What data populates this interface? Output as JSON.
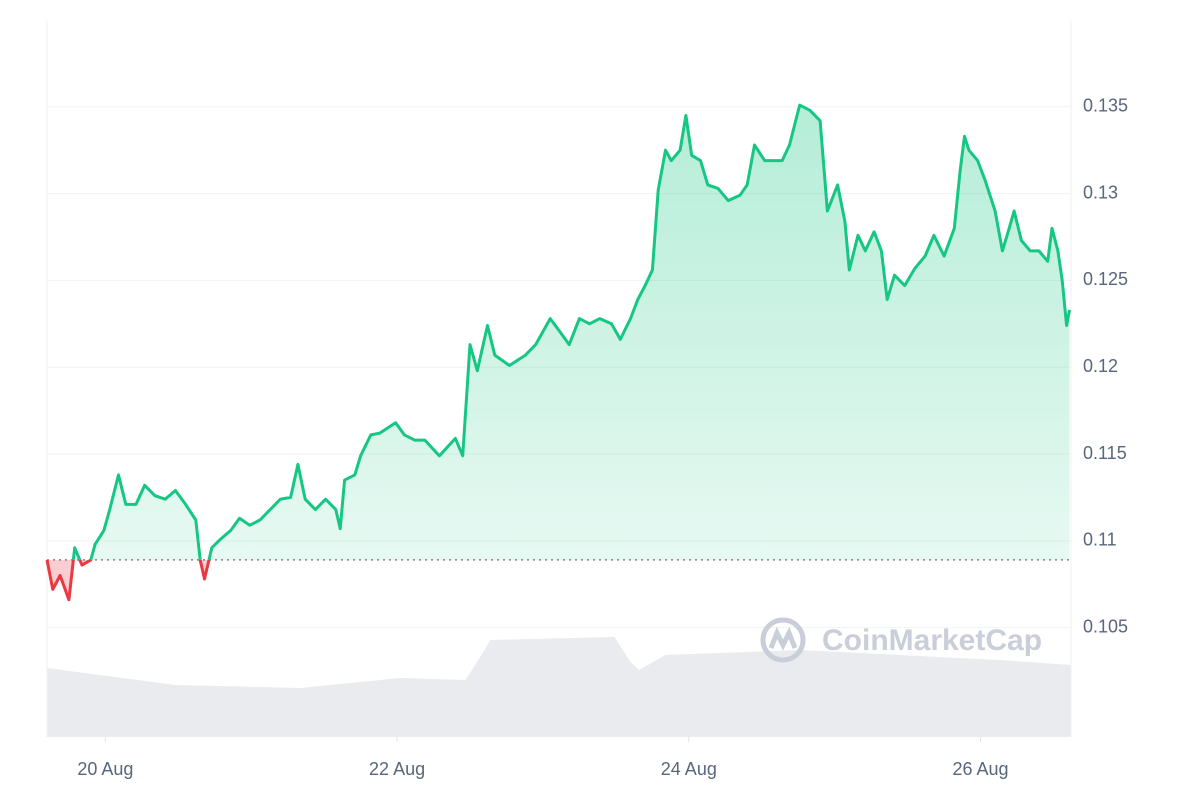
{
  "chart_data": {
    "type": "line",
    "watermark": "CoinMarketCap",
    "xlim": [
      19.6,
      26.62
    ],
    "xticks": [
      {
        "value": 20,
        "label": "20 Aug"
      },
      {
        "value": 22,
        "label": "22 Aug"
      },
      {
        "value": 24,
        "label": "24 Aug"
      },
      {
        "value": 26,
        "label": "26 Aug"
      }
    ],
    "ylim": [
      0.0987,
      0.14
    ],
    "yticks": [
      0.105,
      0.11,
      0.115,
      0.12,
      0.125,
      0.13,
      0.135
    ],
    "grid": true,
    "baseline": 0.1089,
    "up_color": "#16c784",
    "down_color": "#ea3943",
    "series": [
      {
        "color": "#16c784",
        "x": [
          19.6,
          19.64,
          19.69,
          19.75,
          19.79,
          19.84,
          19.9,
          19.93,
          19.99,
          20.03,
          20.09,
          20.14,
          20.21,
          20.27,
          20.34,
          20.41,
          20.48,
          20.55,
          20.62,
          20.65,
          20.68,
          20.73,
          20.79,
          20.86,
          20.92,
          20.99,
          21.06,
          21.13,
          21.2,
          21.27,
          21.32,
          21.37,
          21.44,
          21.51,
          21.58,
          21.61,
          21.64,
          21.71,
          21.75,
          21.82,
          21.88,
          21.99,
          22.05,
          22.12,
          22.19,
          22.29,
          22.4,
          22.45,
          22.5,
          22.55,
          22.62,
          22.67,
          22.77,
          22.88,
          22.95,
          23.05,
          23.12,
          23.18,
          23.25,
          23.32,
          23.39,
          23.47,
          23.53,
          23.6,
          23.65,
          23.7,
          23.75,
          23.79,
          23.84,
          23.88,
          23.94,
          23.98,
          24.02,
          24.08,
          24.13,
          24.2,
          24.27,
          24.35,
          24.4,
          24.45,
          24.52,
          24.59,
          24.64,
          24.69,
          24.76,
          24.83,
          24.9,
          24.95,
          25.02,
          25.07,
          25.1,
          25.16,
          25.21,
          25.27,
          25.32,
          25.36,
          25.41,
          25.48,
          25.55,
          25.62,
          25.68,
          25.75,
          25.82,
          25.86,
          25.89,
          25.92,
          25.98,
          26.03,
          26.1,
          26.15,
          26.2,
          26.23,
          26.28,
          26.34,
          26.4,
          26.46,
          26.49,
          26.53,
          26.56,
          26.59,
          26.61
        ],
        "values": [
          0.1089,
          0.1072,
          0.108,
          0.1066,
          0.1096,
          0.1086,
          0.1089,
          0.1098,
          0.1106,
          0.1118,
          0.1138,
          0.1121,
          0.1121,
          0.1132,
          0.1126,
          0.1124,
          0.1129,
          0.1121,
          0.1112,
          0.1089,
          0.1078,
          0.1096,
          0.1101,
          0.1106,
          0.1113,
          0.1109,
          0.1112,
          0.1118,
          0.1124,
          0.1125,
          0.1144,
          0.1124,
          0.1118,
          0.1124,
          0.1118,
          0.1107,
          0.1135,
          0.1138,
          0.1149,
          0.1161,
          0.1162,
          0.1168,
          0.1161,
          0.1158,
          0.1158,
          0.1149,
          0.1159,
          0.1149,
          0.1213,
          0.1198,
          0.1224,
          0.1207,
          0.1201,
          0.1207,
          0.1213,
          0.1228,
          0.122,
          0.1213,
          0.1228,
          0.1225,
          0.1228,
          0.1225,
          0.1216,
          0.1228,
          0.1239,
          0.1247,
          0.1256,
          0.1302,
          0.1325,
          0.1319,
          0.1325,
          0.1345,
          0.1322,
          0.1319,
          0.1305,
          0.1303,
          0.1296,
          0.1299,
          0.1305,
          0.1328,
          0.1319,
          0.1319,
          0.1319,
          0.1328,
          0.1351,
          0.1348,
          0.1342,
          0.129,
          0.1305,
          0.1284,
          0.1256,
          0.1276,
          0.1267,
          0.1278,
          0.1267,
          0.1239,
          0.1253,
          0.1247,
          0.1257,
          0.1264,
          0.1276,
          0.1264,
          0.128,
          0.1313,
          0.1333,
          0.1325,
          0.1319,
          0.1308,
          0.129,
          0.1267,
          0.1281,
          0.129,
          0.1273,
          0.1267,
          0.1267,
          0.1261,
          0.128,
          0.1267,
          0.125,
          0.1224,
          0.1233
        ]
      }
    ],
    "volume": {
      "color": "#e9ebef",
      "x": [
        19.6,
        20.48,
        21.34,
        22.02,
        22.47,
        22.57,
        22.64,
        23.49,
        23.6,
        23.66,
        23.84,
        24.76,
        26.13,
        26.62
      ],
      "values": [
        69,
        52,
        49,
        59,
        57,
        80,
        97,
        100,
        75,
        67,
        82,
        87,
        77,
        72
      ]
    }
  }
}
